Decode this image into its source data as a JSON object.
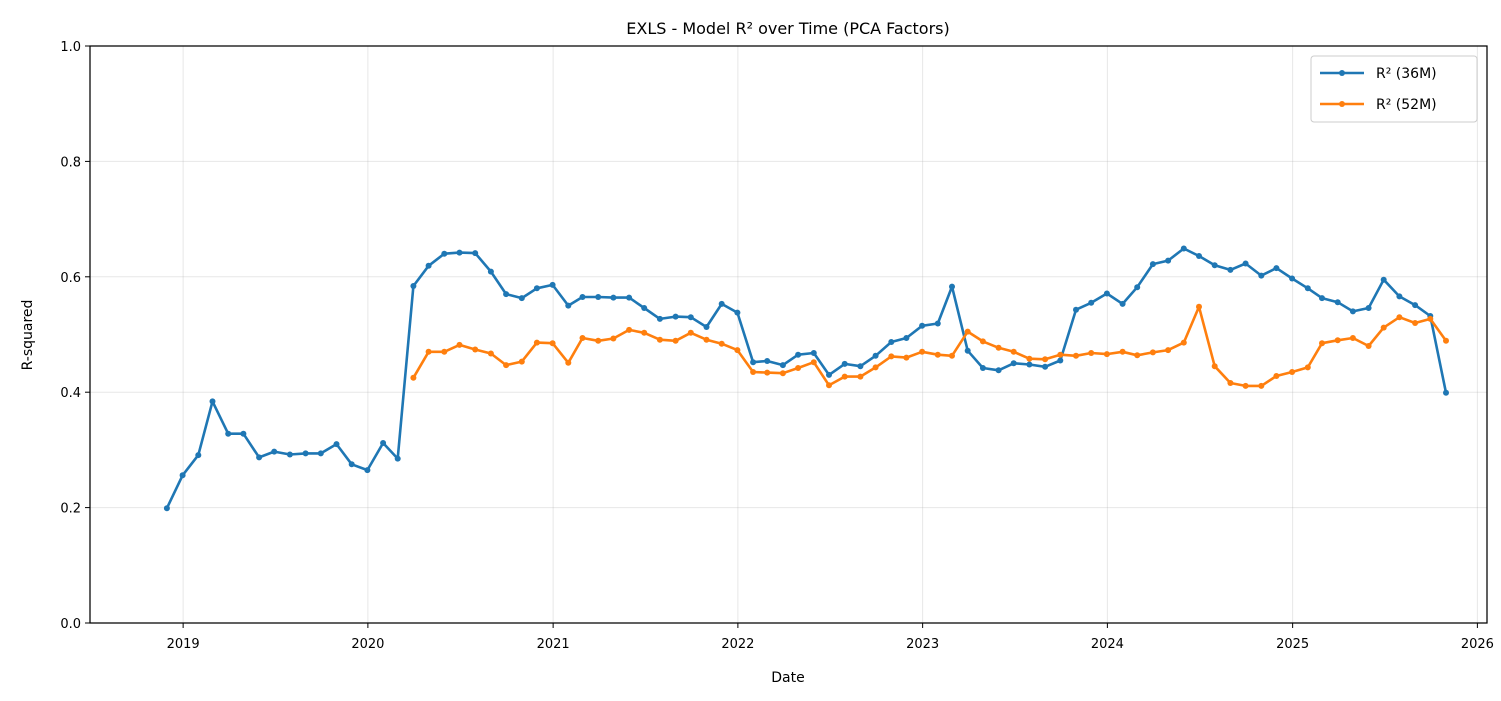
{
  "chart_data": {
    "type": "line",
    "title": "EXLS - Model R² over Time (PCA Factors)",
    "xlabel": "Date",
    "ylabel": "R-squared",
    "ylim": [
      0,
      1
    ],
    "xlim": [
      "2018-07-01",
      "2026-01-20"
    ],
    "x_ticks": [
      "2019",
      "2020",
      "2021",
      "2022",
      "2023",
      "2024",
      "2025",
      "2026"
    ],
    "y_ticks": [
      "0.0",
      "0.2",
      "0.4",
      "0.6",
      "0.8",
      "1.0"
    ],
    "grid": true,
    "legend_position": "top-right",
    "series": [
      {
        "name": "R² (36M)",
        "color": "#1f77b4",
        "points": [
          [
            "2018-11-30",
            0.199
          ],
          [
            "2018-12-31",
            0.256
          ],
          [
            "2019-01-31",
            0.291
          ],
          [
            "2019-02-28",
            0.384
          ],
          [
            "2019-03-31",
            0.328
          ],
          [
            "2019-04-30",
            0.328
          ],
          [
            "2019-05-31",
            0.287
          ],
          [
            "2019-06-30",
            0.297
          ],
          [
            "2019-07-31",
            0.292
          ],
          [
            "2019-08-31",
            0.294
          ],
          [
            "2019-09-30",
            0.294
          ],
          [
            "2019-10-31",
            0.31
          ],
          [
            "2019-11-30",
            0.275
          ],
          [
            "2019-12-31",
            0.265
          ],
          [
            "2020-01-31",
            0.312
          ],
          [
            "2020-02-29",
            0.285
          ],
          [
            "2020-03-31",
            0.584
          ],
          [
            "2020-04-30",
            0.619
          ],
          [
            "2020-05-31",
            0.64
          ],
          [
            "2020-06-30",
            0.642
          ],
          [
            "2020-07-31",
            0.641
          ],
          [
            "2020-08-31",
            0.609
          ],
          [
            "2020-09-30",
            0.57
          ],
          [
            "2020-10-31",
            0.563
          ],
          [
            "2020-11-30",
            0.58
          ],
          [
            "2020-12-31",
            0.586
          ],
          [
            "2021-01-31",
            0.55
          ],
          [
            "2021-02-28",
            0.565
          ],
          [
            "2021-03-31",
            0.565
          ],
          [
            "2021-04-30",
            0.564
          ],
          [
            "2021-05-31",
            0.564
          ],
          [
            "2021-06-30",
            0.546
          ],
          [
            "2021-07-31",
            0.527
          ],
          [
            "2021-08-31",
            0.531
          ],
          [
            "2021-09-30",
            0.53
          ],
          [
            "2021-10-31",
            0.513
          ],
          [
            "2021-11-30",
            0.553
          ],
          [
            "2021-12-31",
            0.538
          ],
          [
            "2022-01-31",
            0.452
          ],
          [
            "2022-02-28",
            0.454
          ],
          [
            "2022-03-31",
            0.447
          ],
          [
            "2022-04-30",
            0.465
          ],
          [
            "2022-05-31",
            0.468
          ],
          [
            "2022-06-30",
            0.43
          ],
          [
            "2022-07-31",
            0.449
          ],
          [
            "2022-08-31",
            0.445
          ],
          [
            "2022-09-30",
            0.463
          ],
          [
            "2022-10-31",
            0.487
          ],
          [
            "2022-11-30",
            0.494
          ],
          [
            "2022-12-31",
            0.515
          ],
          [
            "2023-01-31",
            0.519
          ],
          [
            "2023-02-28",
            0.583
          ],
          [
            "2023-03-31",
            0.472
          ],
          [
            "2023-04-30",
            0.442
          ],
          [
            "2023-05-31",
            0.438
          ],
          [
            "2023-06-30",
            0.45
          ],
          [
            "2023-07-31",
            0.448
          ],
          [
            "2023-08-31",
            0.444
          ],
          [
            "2023-09-30",
            0.455
          ],
          [
            "2023-10-31",
            0.543
          ],
          [
            "2023-11-30",
            0.555
          ],
          [
            "2023-12-31",
            0.571
          ],
          [
            "2024-01-31",
            0.553
          ],
          [
            "2024-02-29",
            0.582
          ],
          [
            "2024-03-31",
            0.622
          ],
          [
            "2024-04-30",
            0.628
          ],
          [
            "2024-05-31",
            0.649
          ],
          [
            "2024-06-30",
            0.636
          ],
          [
            "2024-07-31",
            0.62
          ],
          [
            "2024-08-31",
            0.612
          ],
          [
            "2024-09-30",
            0.623
          ],
          [
            "2024-10-31",
            0.602
          ],
          [
            "2024-11-30",
            0.615
          ],
          [
            "2024-12-31",
            0.597
          ],
          [
            "2025-01-31",
            0.58
          ],
          [
            "2025-02-28",
            0.563
          ],
          [
            "2025-03-31",
            0.556
          ],
          [
            "2025-04-30",
            0.54
          ],
          [
            "2025-05-31",
            0.546
          ],
          [
            "2025-06-30",
            0.595
          ],
          [
            "2025-07-31",
            0.566
          ],
          [
            "2025-08-31",
            0.551
          ],
          [
            "2025-09-30",
            0.532
          ],
          [
            "2025-10-31",
            0.399
          ]
        ]
      },
      {
        "name": "R² (52M)",
        "color": "#ff7f0e",
        "points": [
          [
            "2020-03-31",
            0.425
          ],
          [
            "2020-04-30",
            0.47
          ],
          [
            "2020-05-31",
            0.47
          ],
          [
            "2020-06-30",
            0.482
          ],
          [
            "2020-07-31",
            0.474
          ],
          [
            "2020-08-31",
            0.467
          ],
          [
            "2020-09-30",
            0.447
          ],
          [
            "2020-10-31",
            0.453
          ],
          [
            "2020-11-30",
            0.486
          ],
          [
            "2020-12-31",
            0.485
          ],
          [
            "2021-01-31",
            0.451
          ],
          [
            "2021-02-28",
            0.494
          ],
          [
            "2021-03-31",
            0.489
          ],
          [
            "2021-04-30",
            0.493
          ],
          [
            "2021-05-31",
            0.508
          ],
          [
            "2021-06-30",
            0.503
          ],
          [
            "2021-07-31",
            0.491
          ],
          [
            "2021-08-31",
            0.489
          ],
          [
            "2021-09-30",
            0.503
          ],
          [
            "2021-10-31",
            0.491
          ],
          [
            "2021-11-30",
            0.484
          ],
          [
            "2021-12-31",
            0.473
          ],
          [
            "2022-01-31",
            0.435
          ],
          [
            "2022-02-28",
            0.434
          ],
          [
            "2022-03-31",
            0.433
          ],
          [
            "2022-04-30",
            0.442
          ],
          [
            "2022-05-31",
            0.452
          ],
          [
            "2022-06-30",
            0.412
          ],
          [
            "2022-07-31",
            0.427
          ],
          [
            "2022-08-31",
            0.427
          ],
          [
            "2022-09-30",
            0.443
          ],
          [
            "2022-10-31",
            0.462
          ],
          [
            "2022-11-30",
            0.46
          ],
          [
            "2022-12-31",
            0.47
          ],
          [
            "2023-01-31",
            0.465
          ],
          [
            "2023-02-28",
            0.463
          ],
          [
            "2023-03-31",
            0.505
          ],
          [
            "2023-04-30",
            0.488
          ],
          [
            "2023-05-31",
            0.477
          ],
          [
            "2023-06-30",
            0.47
          ],
          [
            "2023-07-31",
            0.458
          ],
          [
            "2023-08-31",
            0.457
          ],
          [
            "2023-09-30",
            0.465
          ],
          [
            "2023-10-31",
            0.463
          ],
          [
            "2023-11-30",
            0.468
          ],
          [
            "2023-12-31",
            0.466
          ],
          [
            "2024-01-31",
            0.47
          ],
          [
            "2024-02-29",
            0.464
          ],
          [
            "2024-03-31",
            0.469
          ],
          [
            "2024-04-30",
            0.473
          ],
          [
            "2024-05-31",
            0.486
          ],
          [
            "2024-06-30",
            0.548
          ],
          [
            "2024-07-31",
            0.445
          ],
          [
            "2024-08-31",
            0.416
          ],
          [
            "2024-09-30",
            0.411
          ],
          [
            "2024-10-31",
            0.411
          ],
          [
            "2024-11-30",
            0.428
          ],
          [
            "2024-12-31",
            0.435
          ],
          [
            "2025-01-31",
            0.443
          ],
          [
            "2025-02-28",
            0.485
          ],
          [
            "2025-03-31",
            0.49
          ],
          [
            "2025-04-30",
            0.494
          ],
          [
            "2025-05-31",
            0.48
          ],
          [
            "2025-06-30",
            0.512
          ],
          [
            "2025-07-31",
            0.53
          ],
          [
            "2025-08-31",
            0.52
          ],
          [
            "2025-09-30",
            0.527
          ],
          [
            "2025-10-31",
            0.489
          ]
        ]
      }
    ]
  }
}
